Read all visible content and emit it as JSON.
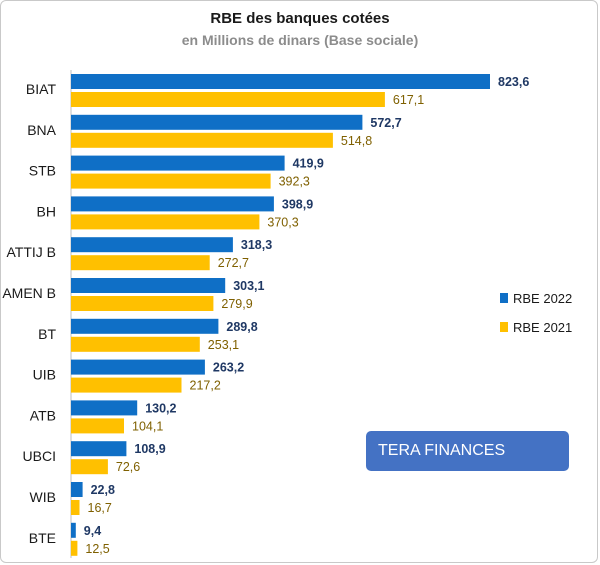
{
  "colors": {
    "rbe2022": "#0f6fc6",
    "rbe2021": "#ffc000",
    "label2022": "#1f3864",
    "label2021": "#7f6000",
    "watermark_bg": "#4472c4"
  },
  "watermark": "TERA FINANCES",
  "chart_data": {
    "type": "bar",
    "orientation": "horizontal",
    "title": "RBE des banques cotées",
    "subtitle": "en Millions de dinars (Base sociale)",
    "categories": [
      "BIAT",
      "BNA",
      "STB",
      "BH",
      "ATTIJ B",
      "AMEN B",
      "BT",
      "UIB",
      "ATB",
      "UBCI",
      "WIB",
      "BTE"
    ],
    "series": [
      {
        "name": "RBE 2022",
        "values": [
          823.6,
          572.7,
          419.9,
          398.9,
          318.3,
          303.1,
          289.8,
          263.2,
          130.2,
          108.9,
          22.8,
          9.4
        ],
        "labels": [
          "823,6",
          "572,7",
          "419,9",
          "398,9",
          "318,3",
          "303,1",
          "289,8",
          "263,2",
          "130,2",
          "108,9",
          "22,8",
          "9,4"
        ]
      },
      {
        "name": "RBE 2021",
        "values": [
          617.1,
          514.8,
          392.3,
          370.3,
          272.7,
          279.9,
          253.1,
          217.2,
          104.1,
          72.6,
          16.7,
          12.5
        ],
        "labels": [
          "617,1",
          "514,8",
          "392,3",
          "370,3",
          "272,7",
          "279,9",
          "253,1",
          "217,2",
          "104,1",
          "72,6",
          "16,7",
          "12,5"
        ]
      }
    ],
    "xlim": [
      0,
      823.6
    ],
    "grid": false,
    "legend": "right"
  }
}
